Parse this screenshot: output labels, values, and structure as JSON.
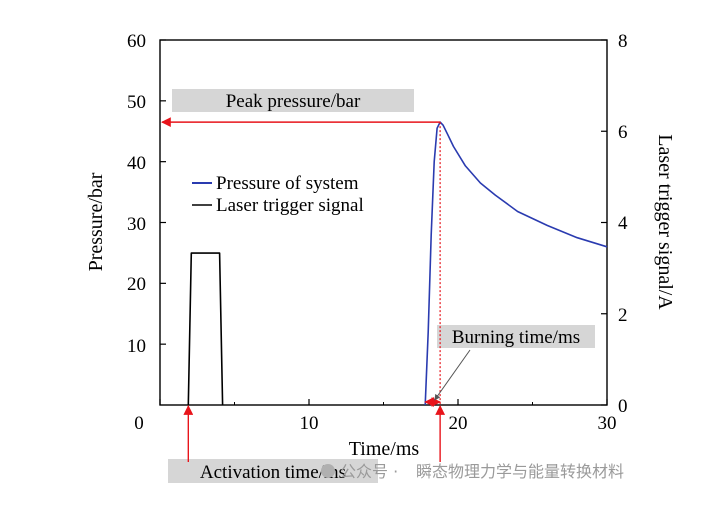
{
  "chart_data": {
    "type": "line",
    "title": "",
    "xlabel": "Time/ms",
    "ylabel_left": "Pressure/bar",
    "ylabel_right": "Laser trigger signal/A",
    "xlim": [
      0,
      30
    ],
    "ylim_left": [
      0,
      60
    ],
    "ylim_right": [
      0,
      8
    ],
    "x_ticks": [
      0,
      10,
      20,
      30
    ],
    "y_left_ticks": [
      10,
      20,
      30,
      40,
      50,
      60
    ],
    "y_right_ticks": [
      0,
      2,
      4,
      6,
      8
    ],
    "grid": false,
    "legend_position": "center-left",
    "series": [
      {
        "name": "Pressure of system",
        "axis": "left",
        "color": "#2a3bb0",
        "x": [
          17.8,
          18.0,
          18.2,
          18.4,
          18.6,
          18.8,
          19.0,
          19.3,
          19.7,
          20.5,
          21.5,
          22.5,
          24,
          26,
          28,
          30
        ],
        "y": [
          0,
          12,
          28,
          40,
          45.5,
          46.5,
          46,
          44.5,
          42.5,
          39.3,
          36.5,
          34.5,
          31.8,
          29.5,
          27.5,
          26
        ]
      },
      {
        "name": "Laser trigger signal",
        "axis": "right",
        "color": "#000000",
        "x": [
          1.9,
          1.9,
          2.1,
          4.0,
          4.2,
          4.2
        ],
        "y": [
          0,
          0,
          3.33,
          3.33,
          0,
          0
        ]
      }
    ],
    "annotations": {
      "peak_label": "Peak pressure/bar",
      "burning_label": "Burning time/ms",
      "activation_label": "Activation time/ms",
      "peak_value": 46.5,
      "peak_time": 18.8,
      "burn_start": 17.8,
      "burn_end": 18.8,
      "activation_start": 1.9,
      "activation_end": 18.8,
      "arrow_color": "#e8141b",
      "label_bg": "#d6d6d6"
    }
  },
  "watermark": {
    "prefix": "公众号 ·",
    "text": "瞬态物理力学与能量转换材料"
  }
}
